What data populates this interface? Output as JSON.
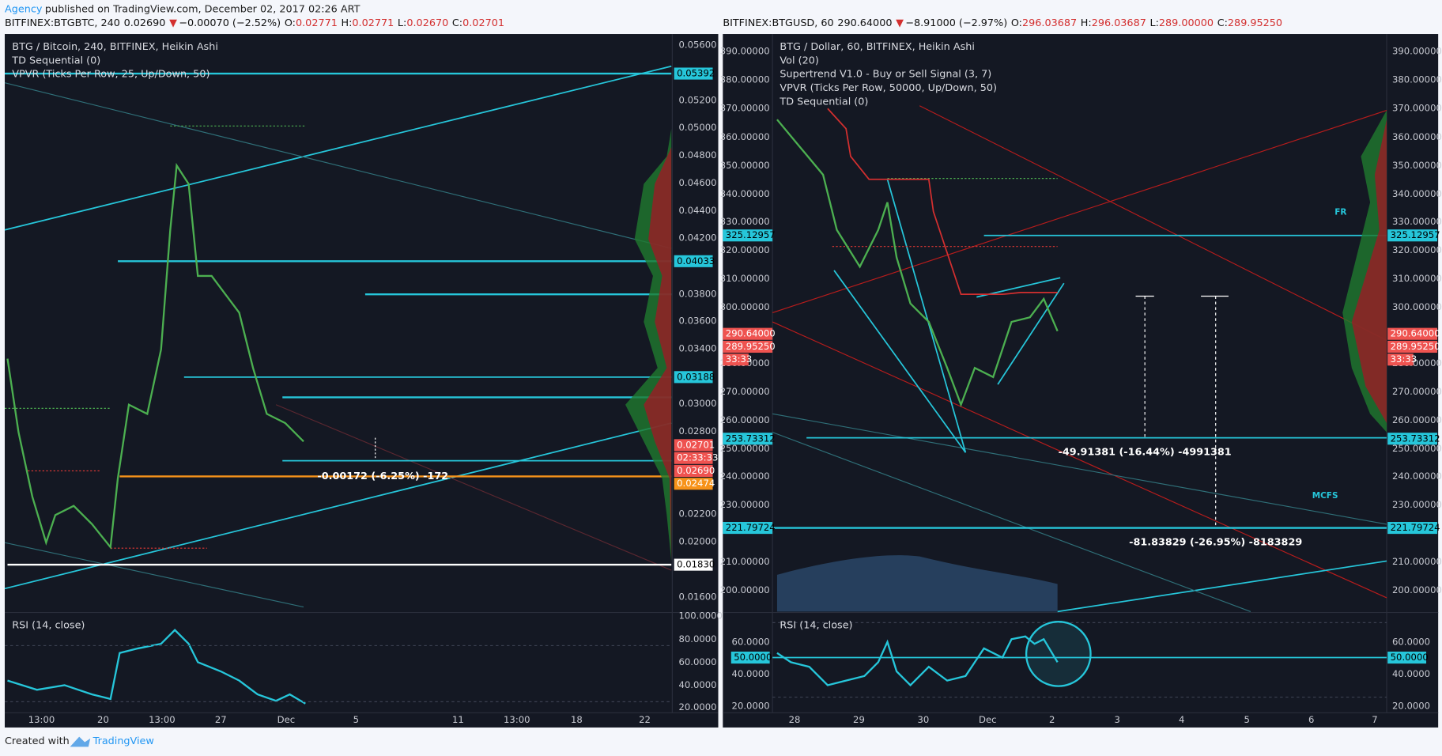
{
  "header": {
    "author": "Agency",
    "published": "published on TradingView.com, December 02, 2017 02:26 ART"
  },
  "left": {
    "quote": {
      "symbol": "BITFINEX:BTGBTC, 240",
      "last": "0.02690",
      "arrow": "▼",
      "change": "−0.00070 (−2.52%)",
      "ohlc": [
        {
          "label": "O:",
          "value": "0.02771"
        },
        {
          "label": "H:",
          "value": "0.02771"
        },
        {
          "label": "L:",
          "value": "0.02670"
        },
        {
          "label": "C:",
          "value": "0.02701"
        }
      ]
    },
    "legend": [
      "BTG / Bitcoin, 240, BITFINEX, Heikin Ashi",
      "TD Sequential (0)",
      "VPVR (Ticks Per Row, 25, Up/Down, 50)"
    ],
    "price_axis": [
      "0.05600",
      "0.05200",
      "0.05000",
      "0.04800",
      "0.04600",
      "0.04400",
      "0.04200",
      "0.03800",
      "0.03600",
      "0.03400",
      "0.03000",
      "0.02800",
      "0.02200",
      "0.02000",
      "0.01600"
    ],
    "price_tags": [
      "0.05392",
      "0.04033",
      "0.03188",
      "0.02701",
      "02:33:33",
      "0.02690",
      "0.02474",
      "0.01830"
    ],
    "annotation": "-0.00172 (-6.25%) -172",
    "rsi": {
      "title": "RSI (14, close)",
      "axis": [
        "100.0000",
        "80.0000",
        "60.0000",
        "40.0000",
        "20.0000"
      ]
    },
    "time_axis": [
      "13:00",
      "20",
      "13:00",
      "27",
      "Dec",
      "5",
      "11",
      "13:00",
      "18",
      "22"
    ]
  },
  "right": {
    "quote": {
      "symbol": "BITFINEX:BTGUSD, 60",
      "last": "290.64000",
      "arrow": "▼",
      "change": "−8.91000 (−2.97%)",
      "ohlc": [
        {
          "label": "O:",
          "value": "296.03687"
        },
        {
          "label": "H:",
          "value": "296.03687"
        },
        {
          "label": "L:",
          "value": "289.00000"
        },
        {
          "label": "C:",
          "value": "289.95250"
        }
      ]
    },
    "legend": [
      "BTG / Dollar, 60, BITFINEX, Heikin Ashi",
      "Vol (20)",
      "Supertrend V1.0 - Buy or Sell Signal (3, 7)",
      "VPVR (Ticks Per Row, 50000, Up/Down, 50)",
      "TD Sequential (0)"
    ],
    "price_axis": [
      "390.00000",
      "380.00000",
      "370.00000",
      "360.00000",
      "350.00000",
      "340.00000",
      "330.00000",
      "320.00000",
      "310.00000",
      "300.00000",
      "280.00000",
      "270.00000",
      "260.00000",
      "250.00000",
      "240.00000",
      "230.00000",
      "210.00000",
      "200.00000"
    ],
    "price_tags": [
      "325.12957",
      "290.64000",
      "289.95250",
      "33:33",
      "253.73312",
      "221.79724"
    ],
    "annotations": [
      "FR",
      "MCFS",
      "-49.91381 (-16.44%) -4991381",
      "-81.83829 (-26.95%) -8183829"
    ],
    "rsi": {
      "title": "RSI (14, close)",
      "axis": [
        "60.0000",
        "40.0000",
        "20.0000"
      ],
      "tag": "50.0000"
    },
    "time_axis": [
      "28",
      "29",
      "30",
      "Dec",
      "2",
      "3",
      "4",
      "5",
      "6",
      "7"
    ]
  },
  "footer": {
    "text": "Created with",
    "brand": "TradingView"
  }
}
